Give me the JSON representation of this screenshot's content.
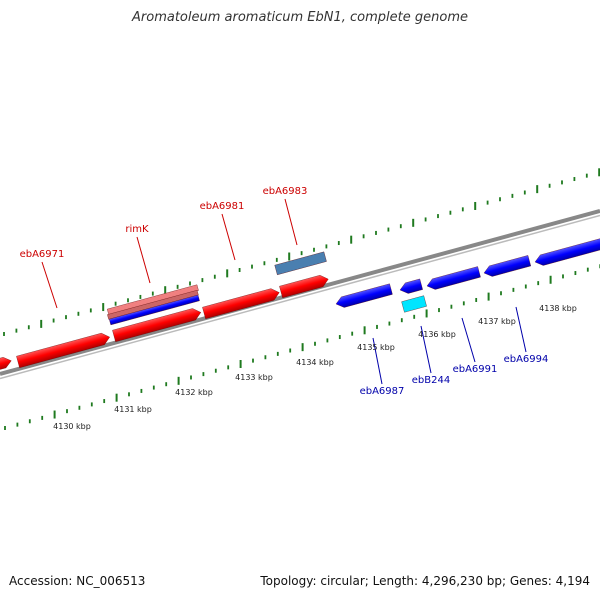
{
  "title": "Aromatoleum aromaticum EbN1, complete genome",
  "footer": {
    "accession": "Accession: NC_006513",
    "summary": "Topology: circular; Length: 4,296,230 bp; Genes: 4,194"
  },
  "colors": {
    "forward_gene": "#ff0000",
    "reverse_gene": "#0000ff",
    "rna_gene": "#00e5ff",
    "other_gene": "#4a7fb0",
    "gc_skew": "#f08080",
    "label_forward": "#cc0000",
    "label_reverse": "#0000aa",
    "backbone": "#888888",
    "ticks": "#1f7a1f"
  },
  "kbp_labels": [
    "4130 kbp",
    "4131 kbp",
    "4132 kbp",
    "4133 kbp",
    "4134 kbp",
    "4135 kbp",
    "4136 kbp",
    "4137 kbp",
    "4138 kbp"
  ],
  "gene_labels_forward": [
    "ebA6971",
    "rimK",
    "ebA6981",
    "ebA6983"
  ],
  "gene_labels_reverse": [
    "ebA6987",
    "ebB244",
    "ebA6991",
    "ebA6994"
  ]
}
